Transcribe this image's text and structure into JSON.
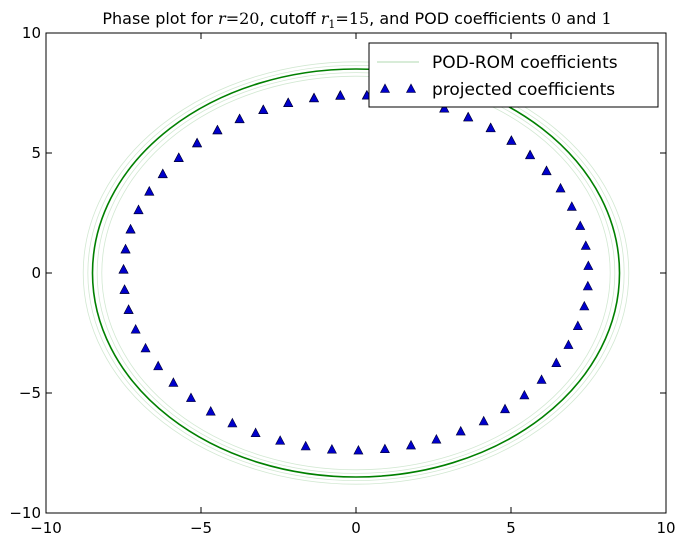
{
  "chart_data": {
    "type": "scatter",
    "title": {
      "prefix": "Phase plot for ",
      "r_var": "r",
      "r_eq": "=20",
      "mid": ", cutoff ",
      "r1_var": "r",
      "r1_sub": "1",
      "r1_eq": "=15",
      "suffix": ", and POD coefficients ",
      "c0": "0",
      "and": " and ",
      "c1": "1"
    },
    "xlabel": "",
    "ylabel": "",
    "xlim": [
      -10,
      10
    ],
    "ylim": [
      -10,
      10
    ],
    "xticks": [
      -10,
      -5,
      0,
      5,
      10
    ],
    "yticks": [
      -10,
      -5,
      0,
      5,
      10
    ],
    "xtick_labels": [
      "−10",
      "−5",
      "0",
      "5",
      "10"
    ],
    "ytick_labels": [
      "−10",
      "−5",
      "0",
      "5",
      "10"
    ],
    "grid": false,
    "legend_position": "top-right",
    "series": [
      {
        "name": "POD-ROM coefficients",
        "kind": "line",
        "color": "#008000",
        "shape": "ellipse",
        "center": [
          0,
          0
        ],
        "radius_x": 8.5,
        "radius_y": 8.5,
        "faint_radius_x": [
          8.2,
          8.35,
          8.65,
          8.8
        ],
        "faint_radius_y": [
          8.2,
          8.35,
          8.65,
          8.8
        ]
      },
      {
        "name": "projected coefficients",
        "kind": "scatter",
        "color": "#0000cc",
        "marker": "triangle-up",
        "shape": "ellipse",
        "center": [
          0,
          0
        ],
        "radius_x": 7.5,
        "radius_y": 7.4,
        "point_count": 80,
        "start_angle_deg": 35,
        "end_angle_deg": 192
      }
    ]
  }
}
